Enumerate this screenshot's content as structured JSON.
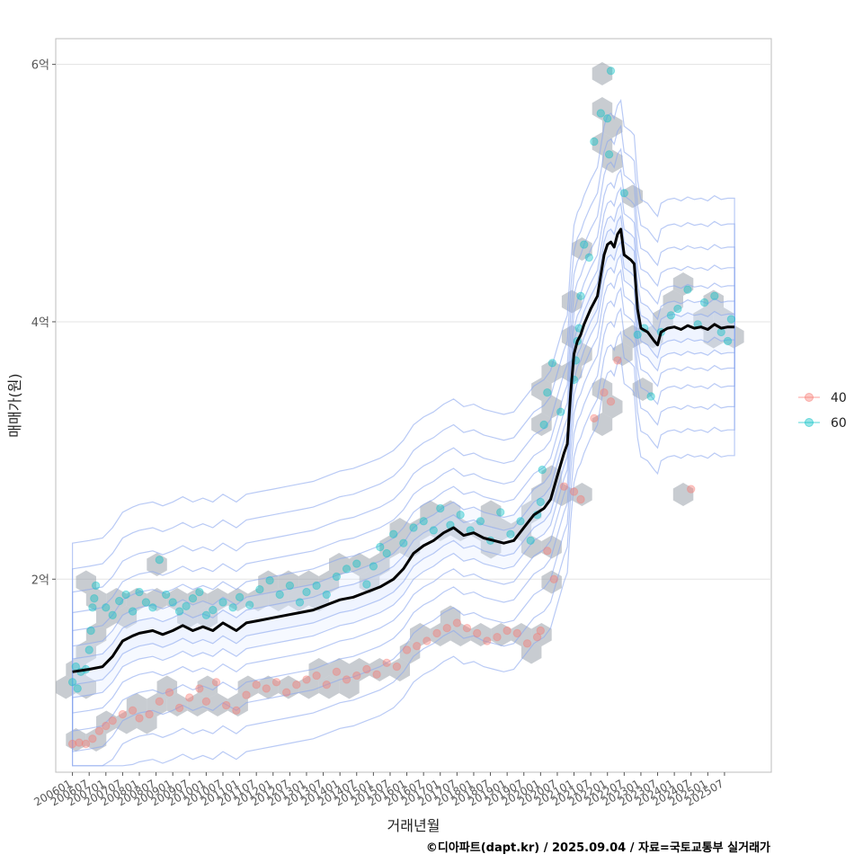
{
  "chart_data": {
    "type": "scatter",
    "title": "",
    "xlabel": "거래년월",
    "ylabel": "매매가(원)",
    "caption": "©디아파트(dapt.kr) / 2025.09.04 / 자료=국토교통부 실거래가",
    "y_ticks": [
      {
        "value": 2,
        "label": "2억"
      },
      {
        "value": 4,
        "label": "4억"
      },
      {
        "value": 6,
        "label": "6억"
      }
    ],
    "ylim": [
      0.5,
      6.2
    ],
    "xlim": [
      2005.5,
      2026.9
    ],
    "x_ticks": [
      "200601",
      "200607",
      "200701",
      "200707",
      "200801",
      "200807",
      "200901",
      "200907",
      "201001",
      "201007",
      "201101",
      "201107",
      "201201",
      "201207",
      "201301",
      "201307",
      "201401",
      "201407",
      "201501",
      "201507",
      "201601",
      "201607",
      "201701",
      "201707",
      "201801",
      "201807",
      "201901",
      "201907",
      "202001",
      "202007",
      "202101",
      "202107",
      "202201",
      "202207",
      "202301",
      "202307",
      "202401",
      "202407",
      "202501",
      "202507"
    ],
    "legend": {
      "position": "right",
      "entries": [
        {
          "label": "40",
          "color": "#F8766D"
        },
        {
          "label": "60",
          "color": "#00BFC4"
        }
      ]
    },
    "series": [
      {
        "name": "60",
        "color": "#00BFC4",
        "points": [
          [
            2006.0,
            1.2
          ],
          [
            2006.1,
            1.32
          ],
          [
            2006.15,
            1.15
          ],
          [
            2006.25,
            1.28
          ],
          [
            2006.4,
            1.3
          ],
          [
            2006.5,
            1.45
          ],
          [
            2006.55,
            1.6
          ],
          [
            2006.6,
            1.78
          ],
          [
            2006.65,
            1.85
          ],
          [
            2006.7,
            1.95
          ],
          [
            2007.0,
            1.78
          ],
          [
            2007.2,
            1.72
          ],
          [
            2007.4,
            1.83
          ],
          [
            2007.6,
            1.88
          ],
          [
            2007.8,
            1.75
          ],
          [
            2008.0,
            1.9
          ],
          [
            2008.2,
            1.82
          ],
          [
            2008.4,
            1.78
          ],
          [
            2008.6,
            2.15
          ],
          [
            2008.8,
            1.88
          ],
          [
            2009.0,
            1.82
          ],
          [
            2009.2,
            1.75
          ],
          [
            2009.4,
            1.79
          ],
          [
            2009.6,
            1.85
          ],
          [
            2009.8,
            1.9
          ],
          [
            2010.0,
            1.72
          ],
          [
            2010.2,
            1.76
          ],
          [
            2010.5,
            1.82
          ],
          [
            2010.8,
            1.78
          ],
          [
            2011.0,
            1.86
          ],
          [
            2011.3,
            1.8
          ],
          [
            2011.6,
            1.92
          ],
          [
            2011.9,
            1.99
          ],
          [
            2012.2,
            1.88
          ],
          [
            2012.5,
            1.95
          ],
          [
            2012.8,
            1.82
          ],
          [
            2013.0,
            1.9
          ],
          [
            2013.3,
            1.95
          ],
          [
            2013.6,
            1.88
          ],
          [
            2013.9,
            2.02
          ],
          [
            2014.2,
            2.08
          ],
          [
            2014.5,
            2.12
          ],
          [
            2014.8,
            1.96
          ],
          [
            2015.0,
            2.1
          ],
          [
            2015.2,
            2.25
          ],
          [
            2015.4,
            2.2
          ],
          [
            2015.6,
            2.35
          ],
          [
            2015.9,
            2.28
          ],
          [
            2016.2,
            2.4
          ],
          [
            2016.5,
            2.45
          ],
          [
            2016.8,
            2.38
          ],
          [
            2017.0,
            2.55
          ],
          [
            2017.3,
            2.42
          ],
          [
            2017.6,
            2.5
          ],
          [
            2017.9,
            2.38
          ],
          [
            2018.2,
            2.45
          ],
          [
            2018.5,
            2.3
          ],
          [
            2018.8,
            2.52
          ],
          [
            2019.1,
            2.35
          ],
          [
            2019.4,
            2.45
          ],
          [
            2019.7,
            2.3
          ],
          [
            2019.9,
            2.5
          ],
          [
            2020.0,
            2.6
          ],
          [
            2020.05,
            2.85
          ],
          [
            2020.1,
            3.2
          ],
          [
            2020.2,
            3.45
          ],
          [
            2020.35,
            3.68
          ],
          [
            2020.6,
            3.3
          ],
          [
            2021.0,
            3.55
          ],
          [
            2021.05,
            3.7
          ],
          [
            2021.1,
            3.85
          ],
          [
            2021.15,
            3.95
          ],
          [
            2021.2,
            4.2
          ],
          [
            2021.3,
            4.6
          ],
          [
            2021.45,
            4.5
          ],
          [
            2021.6,
            5.4
          ],
          [
            2021.8,
            5.62
          ],
          [
            2022.0,
            5.58
          ],
          [
            2022.05,
            5.3
          ],
          [
            2022.1,
            5.95
          ],
          [
            2022.5,
            5.0
          ],
          [
            2022.9,
            3.9
          ],
          [
            2023.1,
            3.95
          ],
          [
            2023.3,
            3.42
          ],
          [
            2023.6,
            3.92
          ],
          [
            2023.9,
            4.05
          ],
          [
            2024.1,
            4.1
          ],
          [
            2024.4,
            4.25
          ],
          [
            2024.7,
            3.98
          ],
          [
            2024.9,
            4.15
          ],
          [
            2025.2,
            4.2
          ],
          [
            2025.4,
            3.92
          ],
          [
            2025.6,
            3.85
          ],
          [
            2025.7,
            4.02
          ]
        ]
      },
      {
        "name": "40",
        "color": "#F8766D",
        "points": [
          [
            2006.0,
            0.72
          ],
          [
            2006.2,
            0.73
          ],
          [
            2006.4,
            0.72
          ],
          [
            2006.6,
            0.76
          ],
          [
            2006.8,
            0.82
          ],
          [
            2007.0,
            0.86
          ],
          [
            2007.2,
            0.9
          ],
          [
            2007.5,
            0.95
          ],
          [
            2007.8,
            0.98
          ],
          [
            2008.0,
            0.92
          ],
          [
            2008.3,
            0.95
          ],
          [
            2008.6,
            1.05
          ],
          [
            2008.9,
            1.12
          ],
          [
            2009.2,
            1.0
          ],
          [
            2009.5,
            1.08
          ],
          [
            2009.8,
            1.15
          ],
          [
            2010.0,
            1.05
          ],
          [
            2010.3,
            1.2
          ],
          [
            2010.6,
            1.02
          ],
          [
            2010.9,
            0.98
          ],
          [
            2011.2,
            1.1
          ],
          [
            2011.5,
            1.18
          ],
          [
            2011.8,
            1.15
          ],
          [
            2012.1,
            1.2
          ],
          [
            2012.4,
            1.12
          ],
          [
            2012.7,
            1.18
          ],
          [
            2013.0,
            1.22
          ],
          [
            2013.3,
            1.25
          ],
          [
            2013.6,
            1.18
          ],
          [
            2013.9,
            1.28
          ],
          [
            2014.2,
            1.22
          ],
          [
            2014.5,
            1.25
          ],
          [
            2014.8,
            1.3
          ],
          [
            2015.1,
            1.26
          ],
          [
            2015.4,
            1.35
          ],
          [
            2015.7,
            1.32
          ],
          [
            2016.0,
            1.45
          ],
          [
            2016.3,
            1.48
          ],
          [
            2016.6,
            1.52
          ],
          [
            2016.9,
            1.58
          ],
          [
            2017.2,
            1.62
          ],
          [
            2017.5,
            1.66
          ],
          [
            2017.8,
            1.62
          ],
          [
            2018.1,
            1.58
          ],
          [
            2018.4,
            1.52
          ],
          [
            2018.7,
            1.55
          ],
          [
            2019.0,
            1.6
          ],
          [
            2019.3,
            1.58
          ],
          [
            2019.6,
            1.5
          ],
          [
            2019.9,
            1.55
          ],
          [
            2020.0,
            1.6
          ],
          [
            2020.2,
            2.22
          ],
          [
            2020.4,
            2.0
          ],
          [
            2020.7,
            2.72
          ],
          [
            2021.0,
            2.68
          ],
          [
            2021.2,
            2.62
          ],
          [
            2021.6,
            3.25
          ],
          [
            2021.9,
            3.45
          ],
          [
            2022.1,
            3.38
          ],
          [
            2022.3,
            3.7
          ],
          [
            2024.5,
            2.7
          ]
        ]
      }
    ],
    "trend_line": {
      "color": "#000000",
      "points": [
        [
          2006.0,
          1.28
        ],
        [
          2006.5,
          1.3
        ],
        [
          2006.9,
          1.32
        ],
        [
          2007.2,
          1.4
        ],
        [
          2007.5,
          1.52
        ],
        [
          2007.8,
          1.56
        ],
        [
          2008.0,
          1.58
        ],
        [
          2008.4,
          1.6
        ],
        [
          2008.7,
          1.57
        ],
        [
          2009.0,
          1.6
        ],
        [
          2009.3,
          1.64
        ],
        [
          2009.6,
          1.6
        ],
        [
          2009.9,
          1.63
        ],
        [
          2010.2,
          1.6
        ],
        [
          2010.5,
          1.66
        ],
        [
          2010.9,
          1.6
        ],
        [
          2011.2,
          1.66
        ],
        [
          2011.6,
          1.68
        ],
        [
          2012.0,
          1.7
        ],
        [
          2012.4,
          1.72
        ],
        [
          2012.8,
          1.74
        ],
        [
          2013.2,
          1.76
        ],
        [
          2013.6,
          1.8
        ],
        [
          2014.0,
          1.84
        ],
        [
          2014.4,
          1.86
        ],
        [
          2014.8,
          1.9
        ],
        [
          2015.2,
          1.94
        ],
        [
          2015.6,
          2.0
        ],
        [
          2015.9,
          2.08
        ],
        [
          2016.2,
          2.2
        ],
        [
          2016.5,
          2.26
        ],
        [
          2016.8,
          2.3
        ],
        [
          2017.1,
          2.36
        ],
        [
          2017.4,
          2.4
        ],
        [
          2017.7,
          2.34
        ],
        [
          2018.0,
          2.36
        ],
        [
          2018.3,
          2.32
        ],
        [
          2018.6,
          2.3
        ],
        [
          2018.9,
          2.28
        ],
        [
          2019.2,
          2.3
        ],
        [
          2019.5,
          2.4
        ],
        [
          2019.8,
          2.5
        ],
        [
          2020.1,
          2.55
        ],
        [
          2020.3,
          2.62
        ],
        [
          2020.5,
          2.8
        ],
        [
          2020.7,
          2.98
        ],
        [
          2020.8,
          3.05
        ],
        [
          2020.9,
          3.45
        ],
        [
          2021.0,
          3.75
        ],
        [
          2021.1,
          3.85
        ],
        [
          2021.2,
          3.9
        ],
        [
          2021.3,
          3.98
        ],
        [
          2021.5,
          4.1
        ],
        [
          2021.7,
          4.2
        ],
        [
          2021.9,
          4.52
        ],
        [
          2022.0,
          4.6
        ],
        [
          2022.1,
          4.62
        ],
        [
          2022.2,
          4.58
        ],
        [
          2022.3,
          4.68
        ],
        [
          2022.4,
          4.72
        ],
        [
          2022.5,
          4.52
        ],
        [
          2022.7,
          4.48
        ],
        [
          2022.8,
          4.45
        ],
        [
          2022.9,
          4.1
        ],
        [
          2023.0,
          3.95
        ],
        [
          2023.2,
          3.92
        ],
        [
          2023.4,
          3.85
        ],
        [
          2023.5,
          3.82
        ],
        [
          2023.6,
          3.92
        ],
        [
          2023.8,
          3.95
        ],
        [
          2024.0,
          3.96
        ],
        [
          2024.2,
          3.94
        ],
        [
          2024.4,
          3.97
        ],
        [
          2024.6,
          3.95
        ],
        [
          2024.8,
          3.96
        ],
        [
          2025.0,
          3.94
        ],
        [
          2025.2,
          3.98
        ],
        [
          2025.4,
          3.95
        ],
        [
          2025.6,
          3.96
        ],
        [
          2025.8,
          3.96
        ]
      ]
    }
  }
}
